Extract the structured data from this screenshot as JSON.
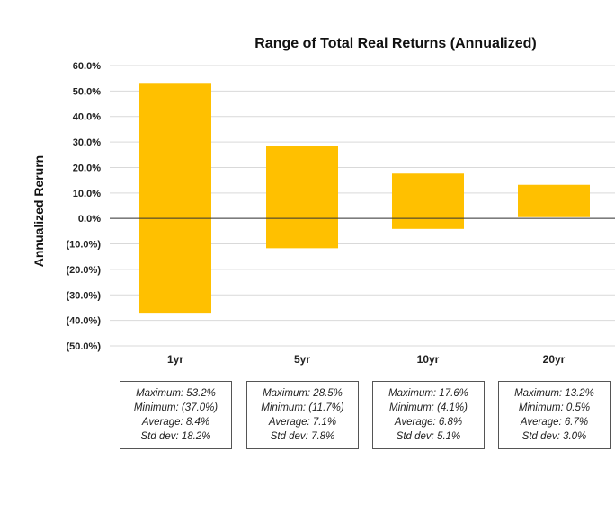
{
  "chart_data": {
    "type": "bar",
    "title": "Range of Total Real Returns (Annualized)",
    "ylabel": "Annualized Rerurn",
    "xlabel": "",
    "categories": [
      "1yr",
      "5yr",
      "10yr",
      "20yr"
    ],
    "ranges": [
      {
        "max": 53.2,
        "min": -37.0
      },
      {
        "max": 28.5,
        "min": -11.7
      },
      {
        "max": 17.6,
        "min": -4.1
      },
      {
        "max": 13.2,
        "min": 0.5
      }
    ],
    "ylim": [
      -50,
      60
    ],
    "yticks": [
      60,
      50,
      40,
      30,
      20,
      10,
      0,
      -10,
      -20,
      -30,
      -40,
      -50
    ],
    "ytick_labels": [
      "60.0%",
      "50.0%",
      "40.0%",
      "30.0%",
      "20.0%",
      "10.0%",
      "0.0%",
      "(10.0%)",
      "(20.0%)",
      "(30.0%)",
      "(40.0%)",
      "(50.0%)"
    ],
    "grid": true,
    "bar_color": "#FFC000",
    "stats": [
      {
        "maximum": "Maximum: 53.2%",
        "minimum": "Minimum: (37.0%)",
        "average": "Average: 8.4%",
        "stddev": "Std dev: 18.2%"
      },
      {
        "maximum": "Maximum: 28.5%",
        "minimum": "Minimum: (11.7%)",
        "average": "Average: 7.1%",
        "stddev": "Std dev: 7.8%"
      },
      {
        "maximum": "Maximum: 17.6%",
        "minimum": "Minimum: (4.1%)",
        "average": "Average: 6.8%",
        "stddev": "Std dev: 5.1%"
      },
      {
        "maximum": "Maximum: 13.2%",
        "minimum": "Minimum: 0.5%",
        "average": "Average: 6.7%",
        "stddev": "Std dev: 3.0%"
      }
    ]
  }
}
